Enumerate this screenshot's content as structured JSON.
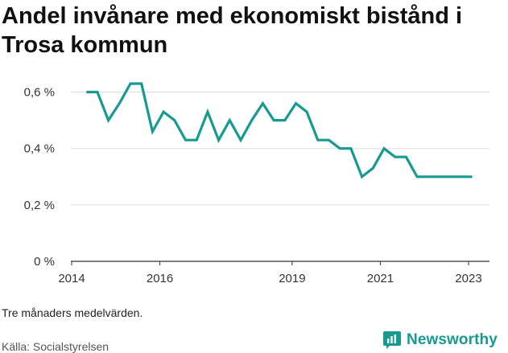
{
  "title": "Andel invånare med ekonomiskt bistånd i Trosa kommun",
  "note": "Tre månaders medelvärden.",
  "source": "Källa: Socialstyrelsen",
  "brand": {
    "name": "Newsworthy",
    "icon": "newsworthy-logo-icon",
    "color": "#169a91"
  },
  "colors": {
    "line": "#169a91",
    "grid": "#dddddd",
    "axis": "#333333"
  },
  "chart_data": {
    "type": "line",
    "title": "Andel invånare med ekonomiskt bistånd i Trosa kommun",
    "xlabel": "",
    "ylabel": "",
    "x_ticks": [
      "2014",
      "2016",
      "2019",
      "2021",
      "2023"
    ],
    "y_ticks": [
      "0 %",
      "0,2 %",
      "0,4 %",
      "0,6 %"
    ],
    "ylim": [
      0,
      0.65
    ],
    "grid": true,
    "series": [
      {
        "values": [
          [
            "2014-05",
            0.6
          ],
          [
            "2014-08",
            0.6
          ],
          [
            "2014-11",
            0.5
          ],
          [
            "2015-02",
            0.56
          ],
          [
            "2015-05",
            0.63
          ],
          [
            "2015-08",
            0.63
          ],
          [
            "2015-11",
            0.46
          ],
          [
            "2016-02",
            0.53
          ],
          [
            "2016-05",
            0.5
          ],
          [
            "2016-08",
            0.43
          ],
          [
            "2016-11",
            0.43
          ],
          [
            "2017-02",
            0.53
          ],
          [
            "2017-05",
            0.43
          ],
          [
            "2017-08",
            0.5
          ],
          [
            "2017-11",
            0.43
          ],
          [
            "2018-02",
            0.5
          ],
          [
            "2018-05",
            0.56
          ],
          [
            "2018-08",
            0.5
          ],
          [
            "2018-11",
            0.5
          ],
          [
            "2019-02",
            0.56
          ],
          [
            "2019-05",
            0.53
          ],
          [
            "2019-08",
            0.43
          ],
          [
            "2019-11",
            0.43
          ],
          [
            "2020-02",
            0.4
          ],
          [
            "2020-05",
            0.4
          ],
          [
            "2020-08",
            0.3
          ],
          [
            "2020-11",
            0.33
          ],
          [
            "2021-02",
            0.4
          ],
          [
            "2021-05",
            0.37
          ],
          [
            "2021-08",
            0.37
          ],
          [
            "2021-11",
            0.3
          ],
          [
            "2022-02",
            0.3
          ],
          [
            "2022-05",
            0.3
          ],
          [
            "2022-08",
            0.3
          ],
          [
            "2022-11",
            0.3
          ],
          [
            "2023-02",
            0.3
          ]
        ]
      }
    ]
  }
}
